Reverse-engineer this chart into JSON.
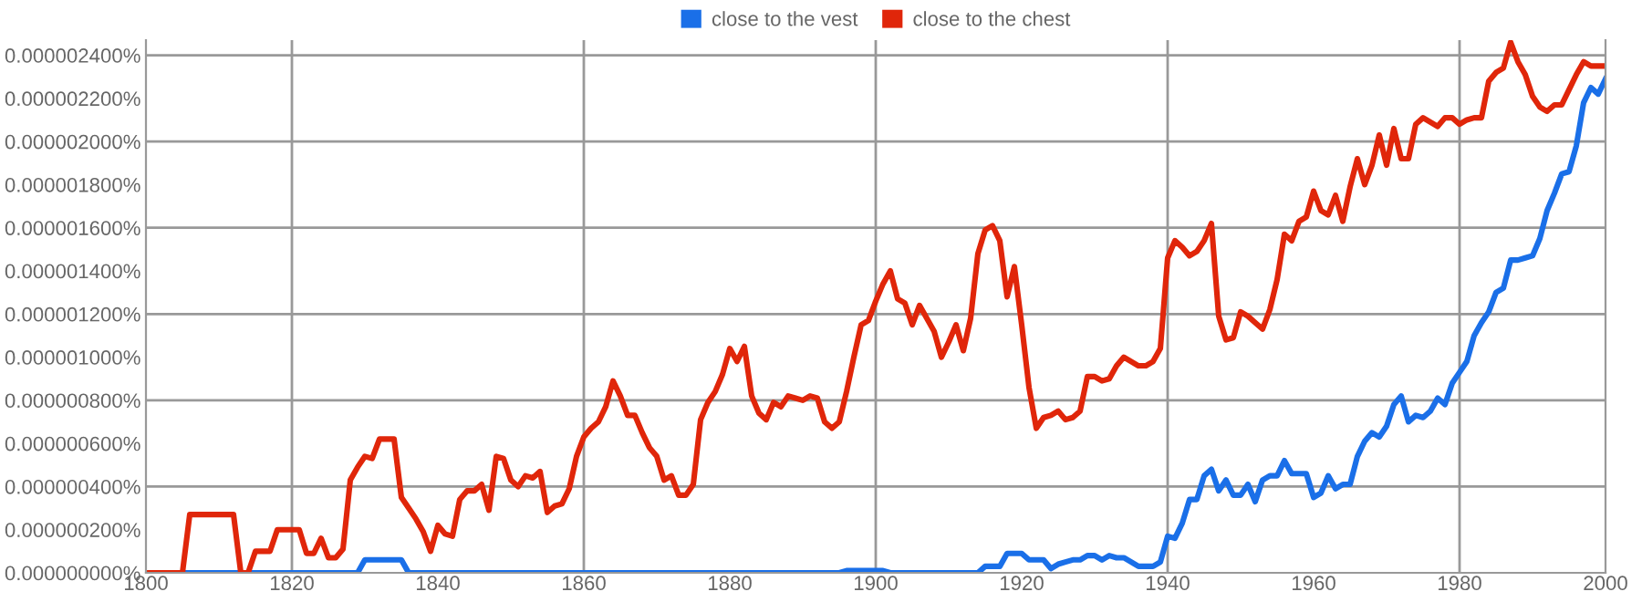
{
  "chart_data": {
    "type": "line",
    "x": [
      1800,
      1801,
      1802,
      1803,
      1804,
      1805,
      1806,
      1807,
      1808,
      1809,
      1810,
      1811,
      1812,
      1813,
      1814,
      1815,
      1816,
      1817,
      1818,
      1819,
      1820,
      1821,
      1822,
      1823,
      1824,
      1825,
      1826,
      1827,
      1828,
      1829,
      1830,
      1831,
      1832,
      1833,
      1834,
      1835,
      1836,
      1837,
      1838,
      1839,
      1840,
      1841,
      1842,
      1843,
      1844,
      1845,
      1846,
      1847,
      1848,
      1849,
      1850,
      1851,
      1852,
      1853,
      1854,
      1855,
      1856,
      1857,
      1858,
      1859,
      1860,
      1861,
      1862,
      1863,
      1864,
      1865,
      1866,
      1867,
      1868,
      1869,
      1870,
      1871,
      1872,
      1873,
      1874,
      1875,
      1876,
      1877,
      1878,
      1879,
      1880,
      1881,
      1882,
      1883,
      1884,
      1885,
      1886,
      1887,
      1888,
      1889,
      1890,
      1891,
      1892,
      1893,
      1894,
      1895,
      1896,
      1897,
      1898,
      1899,
      1900,
      1901,
      1902,
      1903,
      1904,
      1905,
      1906,
      1907,
      1908,
      1909,
      1910,
      1911,
      1912,
      1913,
      1914,
      1915,
      1916,
      1917,
      1918,
      1919,
      1920,
      1921,
      1922,
      1923,
      1924,
      1925,
      1926,
      1927,
      1928,
      1929,
      1930,
      1931,
      1932,
      1933,
      1934,
      1935,
      1936,
      1937,
      1938,
      1939,
      1940,
      1941,
      1942,
      1943,
      1944,
      1945,
      1946,
      1947,
      1948,
      1949,
      1950,
      1951,
      1952,
      1953,
      1954,
      1955,
      1956,
      1957,
      1958,
      1959,
      1960,
      1961,
      1962,
      1963,
      1964,
      1965,
      1966,
      1967,
      1968,
      1969,
      1970,
      1971,
      1972,
      1973,
      1974,
      1975,
      1976,
      1977,
      1978,
      1979,
      1980,
      1981,
      1982,
      1983,
      1984,
      1985,
      1986,
      1987,
      1988,
      1989,
      1990,
      1991,
      1992,
      1993,
      1994,
      1995,
      1996,
      1997,
      1998,
      1999,
      2000
    ],
    "series": [
      {
        "name": "close to the vest",
        "color": "#1a6fe8",
        "values": [
          null,
          null,
          null,
          null,
          0,
          0,
          0,
          0,
          0,
          0,
          0,
          0,
          0,
          0,
          0,
          0,
          0,
          0,
          0,
          0,
          0,
          0,
          0,
          0,
          0,
          0,
          0,
          0,
          0,
          0,
          6e-08,
          6e-08,
          6e-08,
          6e-08,
          6e-08,
          6e-08,
          0,
          0,
          0,
          0,
          0,
          0,
          0,
          0,
          0,
          0,
          0,
          0,
          0,
          0,
          0,
          0,
          0,
          0,
          0,
          0,
          0,
          0,
          0,
          0,
          0,
          0,
          0,
          0,
          0,
          0,
          0,
          0,
          0,
          0,
          0,
          0,
          0,
          0,
          0,
          0,
          0,
          0,
          0,
          0,
          0,
          0,
          0,
          0,
          0,
          0,
          0,
          0,
          0,
          0,
          0,
          0,
          0,
          0,
          0,
          0,
          1e-08,
          1e-08,
          1e-08,
          1e-08,
          1e-08,
          1e-08,
          0,
          0,
          0,
          0,
          0,
          0,
          0,
          0,
          0,
          0,
          0,
          0,
          0,
          3e-08,
          3e-08,
          3e-08,
          9e-08,
          9e-08,
          9e-08,
          6e-08,
          6e-08,
          6e-08,
          2e-08,
          4e-08,
          5e-08,
          6e-08,
          6e-08,
          8e-08,
          8e-08,
          6e-08,
          8e-08,
          7e-08,
          7e-08,
          5e-08,
          3e-08,
          3e-08,
          3e-08,
          5e-08,
          1.7e-07,
          1.6e-07,
          2.3e-07,
          3.4e-07,
          3.4e-07,
          4.5e-07,
          4.8e-07,
          3.8e-07,
          4.3e-07,
          3.6e-07,
          3.6e-07,
          4.1e-07,
          3.3e-07,
          4.3e-07,
          4.5e-07,
          4.5e-07,
          5.2e-07,
          4.6e-07,
          4.6e-07,
          4.6e-07,
          3.5e-07,
          3.7e-07,
          4.5e-07,
          3.9e-07,
          4.1e-07,
          4.1e-07,
          5.4e-07,
          6.1e-07,
          6.5e-07,
          6.3e-07,
          6.8e-07,
          7.8e-07,
          8.2e-07,
          7e-07,
          7.3e-07,
          7.2e-07,
          7.5e-07,
          8.1e-07,
          7.8e-07,
          8.8e-07,
          9.3e-07,
          9.8e-07,
          1.1e-06,
          1.16e-06,
          1.21e-06,
          1.3e-06,
          1.32e-06,
          1.45e-06,
          1.45e-06,
          1.46e-06,
          1.47e-06,
          1.55e-06,
          1.68e-06,
          1.76e-06,
          1.85e-06,
          1.86e-06,
          1.98e-06,
          2.18e-06,
          2.25e-06,
          2.22e-06,
          2.29e-06
        ]
      },
      {
        "name": "close to the chest",
        "color": "#e0260a",
        "values": [
          0,
          0,
          0,
          0,
          0,
          0,
          2.7e-07,
          2.7e-07,
          2.7e-07,
          2.7e-07,
          2.7e-07,
          2.7e-07,
          2.7e-07,
          0,
          0,
          1e-07,
          1e-07,
          1e-07,
          2e-07,
          2e-07,
          2e-07,
          2e-07,
          9e-08,
          9e-08,
          1.6e-07,
          7e-08,
          7e-08,
          1.1e-07,
          4.3e-07,
          4.9e-07,
          5.4e-07,
          5.3e-07,
          6.2e-07,
          6.2e-07,
          6.2e-07,
          3.5e-07,
          3e-07,
          2.5e-07,
          1.9e-07,
          1e-07,
          2.2e-07,
          1.8e-07,
          1.7e-07,
          3.4e-07,
          3.8e-07,
          3.8e-07,
          4.1e-07,
          2.9e-07,
          5.4e-07,
          5.3e-07,
          4.3e-07,
          4e-07,
          4.5e-07,
          4.4e-07,
          4.7e-07,
          2.8e-07,
          3.1e-07,
          3.2e-07,
          3.9e-07,
          5.4e-07,
          6.3e-07,
          6.7e-07,
          7e-07,
          7.7e-07,
          8.9e-07,
          8.2e-07,
          7.3e-07,
          7.3e-07,
          6.5e-07,
          5.8e-07,
          5.4e-07,
          4.3e-07,
          4.5e-07,
          3.6e-07,
          3.6e-07,
          4.1e-07,
          7.1e-07,
          7.9e-07,
          8.4e-07,
          9.2e-07,
          1.04e-06,
          9.8e-07,
          1.05e-06,
          8.2e-07,
          7.4e-07,
          7.1e-07,
          7.9e-07,
          7.7e-07,
          8.2e-07,
          8.1e-07,
          8e-07,
          8.2e-07,
          8.1e-07,
          7e-07,
          6.7e-07,
          7e-07,
          8.4e-07,
          1e-06,
          1.15e-06,
          1.17e-06,
          1.26e-06,
          1.34e-06,
          1.4e-06,
          1.27e-06,
          1.25e-06,
          1.15e-06,
          1.24e-06,
          1.18e-06,
          1.12e-06,
          1e-06,
          1.07e-06,
          1.15e-06,
          1.03e-06,
          1.18e-06,
          1.48e-06,
          1.59e-06,
          1.61e-06,
          1.54e-06,
          1.28e-06,
          1.42e-06,
          1.15e-06,
          8.6e-07,
          6.7e-07,
          7.2e-07,
          7.3e-07,
          7.5e-07,
          7.1e-07,
          7.2e-07,
          7.5e-07,
          9.1e-07,
          9.1e-07,
          8.9e-07,
          9e-07,
          9.6e-07,
          1e-06,
          9.8e-07,
          9.6e-07,
          9.6e-07,
          9.8e-07,
          1.04e-06,
          1.46e-06,
          1.54e-06,
          1.51e-06,
          1.47e-06,
          1.49e-06,
          1.54e-06,
          1.62e-06,
          1.19e-06,
          1.08e-06,
          1.09e-06,
          1.21e-06,
          1.19e-06,
          1.16e-06,
          1.13e-06,
          1.22e-06,
          1.36e-06,
          1.57e-06,
          1.54e-06,
          1.63e-06,
          1.65e-06,
          1.77e-06,
          1.68e-06,
          1.66e-06,
          1.75e-06,
          1.63e-06,
          1.79e-06,
          1.92e-06,
          1.8e-06,
          1.89e-06,
          2.03e-06,
          1.89e-06,
          2.06e-06,
          1.92e-06,
          1.92e-06,
          2.08e-06,
          2.11e-06,
          2.09e-06,
          2.07e-06,
          2.11e-06,
          2.11e-06,
          2.08e-06,
          2.1e-06,
          2.11e-06,
          2.11e-06,
          2.28e-06,
          2.32e-06,
          2.34e-06,
          2.46e-06,
          2.37e-06,
          2.31e-06,
          2.21e-06,
          2.16e-06,
          2.14e-06,
          2.17e-06,
          2.17e-06,
          2.24e-06,
          2.31e-06,
          2.37e-06,
          2.35e-06,
          2.35e-06,
          2.35e-06
        ]
      }
    ],
    "xlim": [
      1800,
      2000
    ],
    "ylim": [
      0,
      2.47e-06
    ],
    "xticks": [
      1800,
      1820,
      1840,
      1860,
      1880,
      1900,
      1920,
      1940,
      1960,
      1980,
      2000
    ],
    "yticks": [
      {
        "value": 0,
        "label": "0.000000000%"
      },
      {
        "value": 2e-07,
        "label": "0.000000200%"
      },
      {
        "value": 4e-07,
        "label": "0.000000400%"
      },
      {
        "value": 6e-07,
        "label": "0.000000600%"
      },
      {
        "value": 8e-07,
        "label": "0.000000800%"
      },
      {
        "value": 1e-06,
        "label": "0.000001000%"
      },
      {
        "value": 1.2e-06,
        "label": "0.000001200%"
      },
      {
        "value": 1.4e-06,
        "label": "0.000001400%"
      },
      {
        "value": 1.6e-06,
        "label": "0.000001600%"
      },
      {
        "value": 1.8e-06,
        "label": "0.000001800%"
      },
      {
        "value": 2e-06,
        "label": "0.000002000%"
      },
      {
        "value": 2.2e-06,
        "label": "0.000002200%"
      },
      {
        "value": 2.4e-06,
        "label": "0.000002400%"
      }
    ],
    "grid": true,
    "legend": "top",
    "marker": "none",
    "line_style": "solid"
  }
}
